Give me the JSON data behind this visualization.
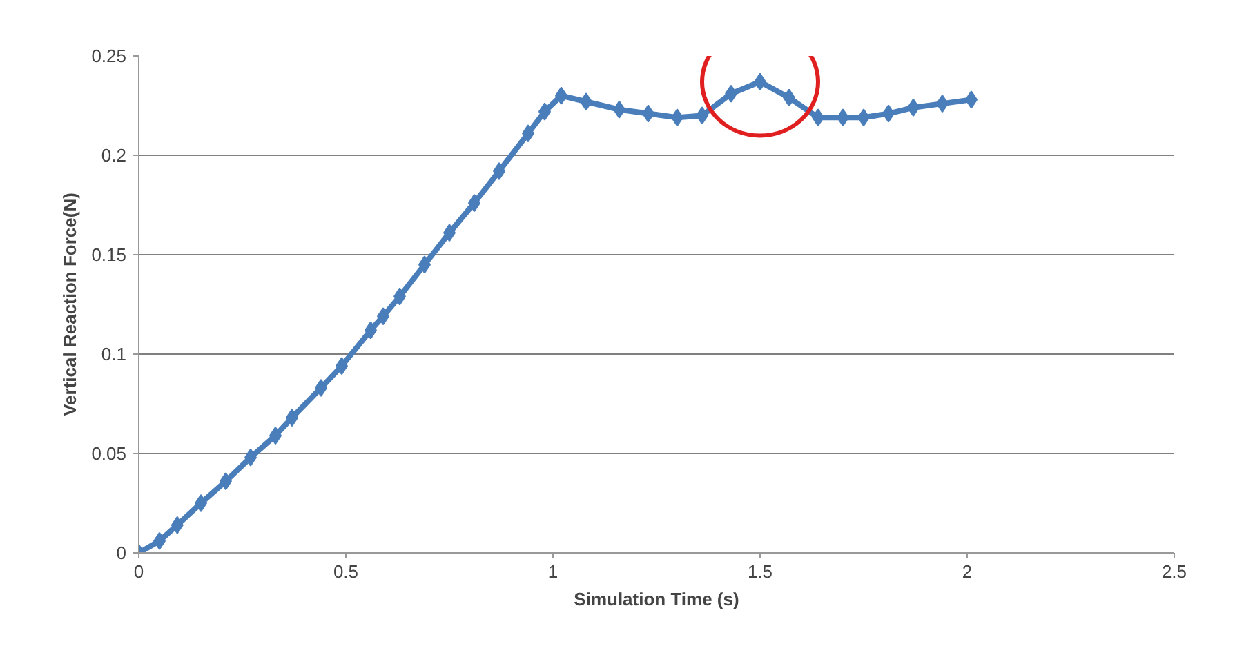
{
  "chart_data": {
    "type": "line",
    "xlabel": "Simulation Time (s)",
    "ylabel": "Vertical Reaction Force(N)",
    "x": [
      0,
      0.05,
      0.093,
      0.15,
      0.21,
      0.27,
      0.33,
      0.37,
      0.44,
      0.49,
      0.56,
      0.59,
      0.63,
      0.69,
      0.75,
      0.81,
      0.87,
      0.94,
      0.98,
      1.02,
      1.08,
      1.16,
      1.23,
      1.3,
      1.36,
      1.43,
      1.5,
      1.57,
      1.64,
      1.7,
      1.75,
      1.81,
      1.87,
      1.94,
      2.01
    ],
    "series": [
      {
        "color": "#4a7ebb",
        "values": [
          0,
          0.006,
          0.014,
          0.025,
          0.036,
          0.048,
          0.059,
          0.068,
          0.083,
          0.094,
          0.112,
          0.119,
          0.129,
          0.145,
          0.161,
          0.176,
          0.192,
          0.211,
          0.222,
          0.23,
          0.227,
          0.223,
          0.221,
          0.219,
          0.22,
          0.231,
          0.237,
          0.229,
          0.219,
          0.219,
          0.219,
          0.221,
          0.224,
          0.226,
          0.228
        ]
      }
    ],
    "xlim": [
      0,
      2.5
    ],
    "ylim": [
      0,
      0.25
    ],
    "xticks": [
      0,
      0.5,
      1,
      1.5,
      2,
      2.5
    ],
    "yticks": [
      0,
      0.05,
      0.1,
      0.15,
      0.2,
      0.25
    ],
    "grid": "y",
    "marker": "diamond",
    "line_style": "solid"
  }
}
